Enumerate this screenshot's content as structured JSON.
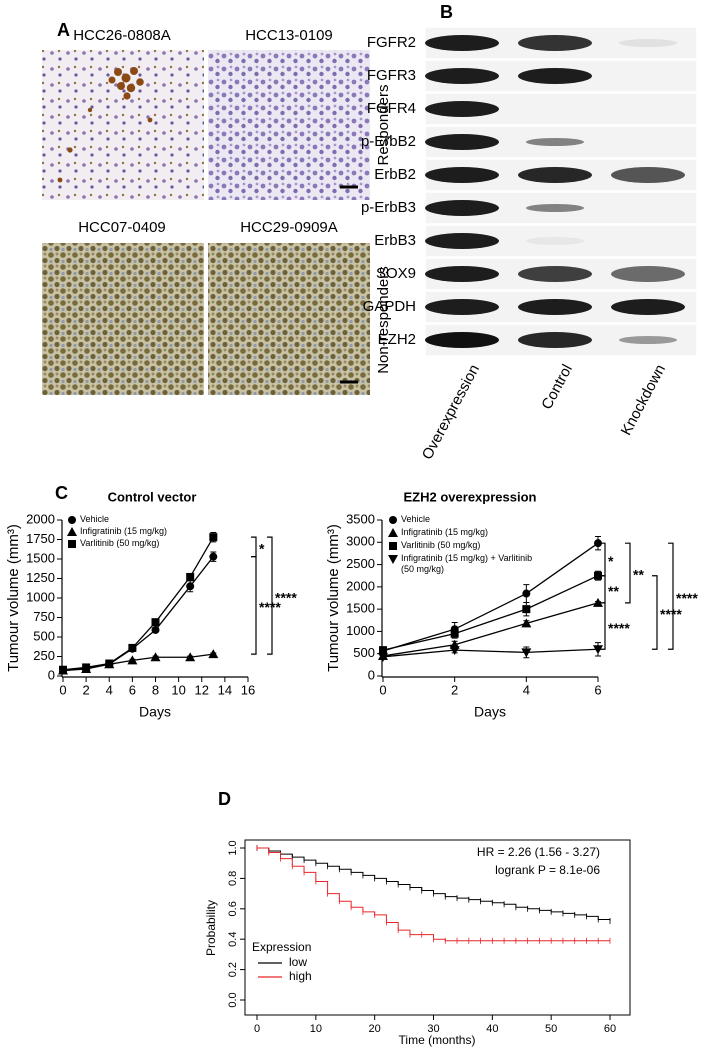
{
  "panel_a": {
    "label": "A",
    "images": [
      {
        "title": "HCC26-0808A"
      },
      {
        "title": "HCC13-0109"
      },
      {
        "title": "HCC07-0409"
      },
      {
        "title": "HCC29-0909A"
      }
    ],
    "groups": [
      "Responders",
      "Non-responders"
    ]
  },
  "panel_b": {
    "label": "B",
    "rows": [
      "FGFR2",
      "FGFR3",
      "FGFR4",
      "p-ErbB2",
      "ErbB2",
      "p-ErbB3",
      "ErbB3",
      "SOX9",
      "GAPDH",
      "EZH2"
    ],
    "columns": [
      "Overexpression",
      "Control",
      "Knockdown"
    ]
  },
  "panel_c": {
    "label": "C"
  },
  "panel_d": {
    "label": "D"
  },
  "chart_data": [
    {
      "type": "line",
      "title": "Control vector",
      "x_label": "Days",
      "y_label": "Tumour volume (mm³)",
      "x": [
        0,
        2,
        4,
        6,
        8,
        11,
        13
      ],
      "xlim": [
        0,
        16
      ],
      "xticks": [
        0,
        2,
        4,
        6,
        8,
        10,
        12,
        14,
        16
      ],
      "ylim": [
        0,
        2000
      ],
      "yticks": [
        0,
        250,
        500,
        750,
        1000,
        1250,
        1500,
        1750,
        2000
      ],
      "series": [
        {
          "name": "Vehicle",
          "color": "#000000",
          "marker": "circle",
          "values": [
            70,
            100,
            150,
            350,
            590,
            1150,
            1530
          ],
          "errors": [
            10,
            15,
            20,
            30,
            25,
            70,
            60
          ]
        },
        {
          "name": "Infigratinib (15 mg/kg)",
          "color": "#000000",
          "marker": "triangle",
          "values": [
            70,
            90,
            150,
            200,
            240,
            240,
            280
          ],
          "errors": [
            10,
            10,
            15,
            15,
            15,
            15,
            15
          ]
        },
        {
          "name": "Varlitinib (50 mg/kg)",
          "color": "#000000",
          "marker": "square",
          "values": [
            80,
            110,
            160,
            360,
            690,
            1270,
            1780
          ],
          "errors": [
            10,
            15,
            20,
            30,
            25,
            40,
            60
          ]
        }
      ],
      "annotations": [
        "*",
        "****",
        "****"
      ]
    },
    {
      "type": "line",
      "title": "EZH2 overexpression",
      "x_label": "Days",
      "y_label": "Tumour volume (mm³)",
      "x": [
        0,
        2,
        4,
        6
      ],
      "xlim": [
        0,
        6
      ],
      "xticks": [
        0,
        2,
        4,
        6
      ],
      "ylim": [
        0,
        3500
      ],
      "yticks": [
        0,
        500,
        1000,
        1500,
        2000,
        2500,
        3000,
        3500
      ],
      "series": [
        {
          "name": "Vehicle",
          "color": "#000000",
          "marker": "circle",
          "values": [
            560,
            1050,
            1850,
            2980
          ],
          "errors": [
            60,
            150,
            200,
            150
          ]
        },
        {
          "name": "Infigratinib (15 mg/kg)",
          "color": "#000000",
          "marker": "triangle",
          "values": [
            450,
            700,
            1180,
            1640
          ],
          "errors": [
            50,
            80,
            60,
            30
          ]
        },
        {
          "name": "Varlitinib (50 mg/kg)",
          "color": "#000000",
          "marker": "square",
          "values": [
            580,
            950,
            1500,
            2250
          ],
          "errors": [
            60,
            100,
            150,
            100
          ]
        },
        {
          "name": "Infigratinib (15 mg/kg) + Varlitinib (50 mg/kg)",
          "color": "#000000",
          "marker": "triangle-down",
          "values": [
            430,
            580,
            530,
            600
          ],
          "errors": [
            40,
            60,
            120,
            150
          ]
        }
      ],
      "annotations": [
        "*",
        "**",
        "****",
        "**",
        "****",
        "****"
      ]
    },
    {
      "type": "line",
      "step": true,
      "x_label": "Time (months)",
      "y_label": "Probability",
      "x": [
        0,
        2,
        4,
        6,
        8,
        10,
        12,
        14,
        16,
        18,
        20,
        22,
        24,
        26,
        28,
        30,
        32,
        34,
        36,
        38,
        40,
        42,
        44,
        46,
        48,
        50,
        52,
        54,
        56,
        58,
        60
      ],
      "xlim": [
        0,
        60
      ],
      "xticks": [
        0,
        10,
        20,
        30,
        40,
        50,
        60
      ],
      "ylim": [
        0,
        1
      ],
      "yticks": [
        {
          "value": 0,
          "label": "0.0"
        },
        0.2,
        0.4,
        0.6,
        0.8,
        {
          "value": 1,
          "label": "1.0"
        }
      ],
      "legend_title": "Expression",
      "series": [
        {
          "name": "low",
          "color": "#000000",
          "values": [
            1.0,
            0.98,
            0.96,
            0.94,
            0.92,
            0.9,
            0.88,
            0.86,
            0.84,
            0.82,
            0.8,
            0.78,
            0.76,
            0.74,
            0.72,
            0.7,
            0.68,
            0.67,
            0.66,
            0.65,
            0.64,
            0.63,
            0.61,
            0.6,
            0.59,
            0.58,
            0.57,
            0.56,
            0.55,
            0.53,
            0.52
          ]
        },
        {
          "name": "high",
          "color": "#e8262a",
          "values": [
            1.0,
            0.97,
            0.93,
            0.88,
            0.84,
            0.78,
            0.7,
            0.65,
            0.61,
            0.58,
            0.56,
            0.51,
            0.46,
            0.43,
            0.43,
            0.4,
            0.39,
            0.39,
            0.39,
            0.39,
            0.39,
            0.39,
            0.39,
            0.39,
            0.39,
            0.39,
            0.39,
            0.39,
            0.39,
            0.39,
            0.39
          ]
        }
      ],
      "annotations": [
        "HR = 2.26 (1.56 - 3.27)",
        "logrank P = 8.1e-06"
      ]
    }
  ]
}
